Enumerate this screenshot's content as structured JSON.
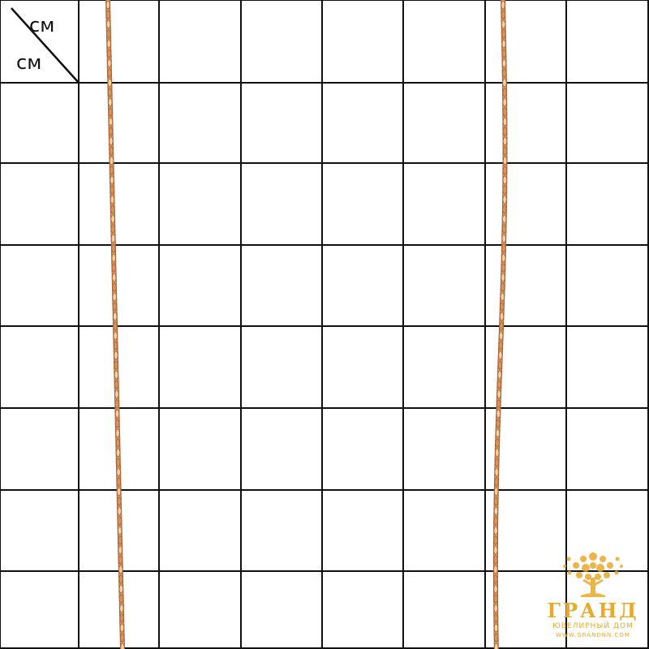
{
  "grid": {
    "unit_label_horizontal": "см",
    "unit_label_vertical": "см",
    "columns": 8,
    "rows": 8,
    "line_color": "#111111",
    "background_color": "#ffffff"
  },
  "product": {
    "item": "gold chain",
    "strand_count": 2,
    "chain_color": "#d9965a",
    "chain_highlight_color": "#f6d2a6",
    "chain_shadow_color": "#a8643a"
  },
  "watermark": {
    "brand_name": "ГРАНД",
    "tagline": "ЮВЕЛИРНЫЙ ДОМ",
    "website": "WWW.GRANDNN.COM",
    "logo_icon": "tree-icon",
    "brand_color": "#e8a92c"
  }
}
